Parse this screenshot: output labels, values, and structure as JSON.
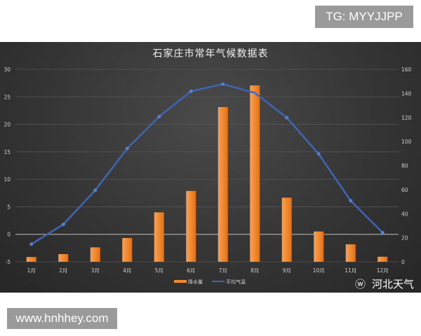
{
  "overlay": {
    "tg_label": "TG: MYYJJPP",
    "website": "www.hnhhey.com",
    "weibo_source": "河北天气"
  },
  "chart_data": {
    "type": "bar+line",
    "title": "石家庄市常年气候数据表",
    "categories": [
      "1月",
      "2月",
      "3月",
      "4月",
      "5月",
      "6月",
      "7月",
      "8月",
      "9月",
      "10月",
      "11月",
      "12月"
    ],
    "series": [
      {
        "name": "降水量",
        "type": "bar",
        "axis": "right",
        "color": "#f08a30",
        "values": [
          4,
          6.4,
          12,
          19.8,
          41.1,
          58.9,
          128.6,
          146.6,
          53.3,
          25.2,
          14.5,
          4.2
        ]
      },
      {
        "name": "平均气温",
        "type": "line",
        "axis": "left",
        "color": "#3f64b0",
        "values": [
          -1.8,
          1.8,
          8.0,
          15.6,
          21.4,
          26.0,
          27.3,
          25.7,
          21.2,
          14.6,
          6.1,
          0.3
        ]
      }
    ],
    "left_axis": {
      "ylim": [
        -5,
        30
      ],
      "ticks": [
        "-5",
        "0",
        "5",
        "10",
        "15",
        "20",
        "25",
        "30"
      ]
    },
    "right_axis": {
      "ylim": [
        0,
        160
      ],
      "ticks": [
        "0",
        "20",
        "40",
        "60",
        "80",
        "100",
        "120",
        "140",
        "160"
      ]
    },
    "grid": true,
    "legend": "bottom"
  }
}
